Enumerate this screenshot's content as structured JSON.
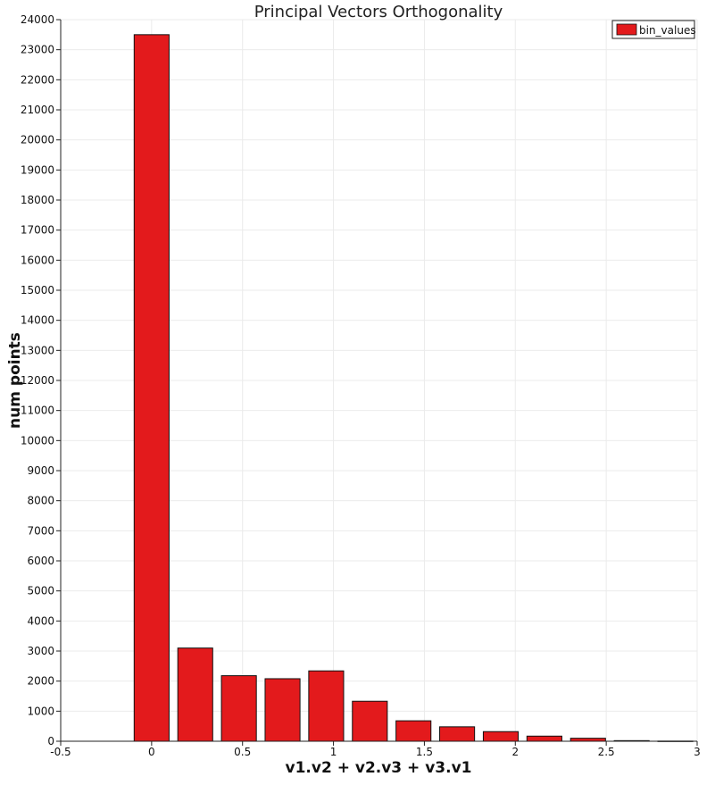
{
  "chart_data": {
    "type": "bar",
    "title": "Principal Vectors Orthogonality",
    "xlabel": "v1.v2 + v2.v3 + v3.v1",
    "ylabel": "num points",
    "xlim": [
      -0.5,
      3
    ],
    "ylim": [
      0,
      24000
    ],
    "x_ticks": [
      -0.5,
      0,
      0.5,
      1,
      1.5,
      2,
      2.5,
      3
    ],
    "y_ticks": [
      0,
      1000,
      2000,
      3000,
      4000,
      5000,
      6000,
      7000,
      8000,
      9000,
      10000,
      11000,
      12000,
      13000,
      14000,
      15000,
      16000,
      17000,
      18000,
      19000,
      20000,
      21000,
      22000,
      23000,
      24000
    ],
    "bin_width": 0.24,
    "series": [
      {
        "name": "bin_values",
        "color": "#e31a1c",
        "x": [
          0,
          0.24,
          0.48,
          0.72,
          0.96,
          1.2,
          1.44,
          1.68,
          1.92,
          2.16,
          2.4,
          2.64,
          2.88
        ],
        "values": [
          23500,
          3100,
          2180,
          2080,
          2340,
          1330,
          680,
          480,
          320,
          170,
          100,
          20,
          5
        ]
      }
    ],
    "grid": true,
    "legend_position": "top-right"
  }
}
